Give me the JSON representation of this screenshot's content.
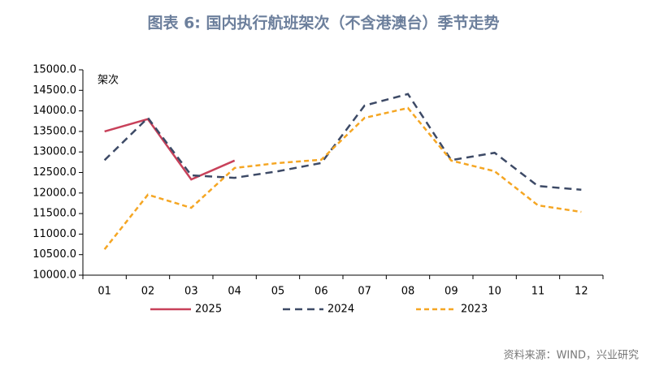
{
  "chart_data": {
    "type": "line",
    "title": "图表 6:  国内执行航班架次（不含港澳台）季节走势",
    "y_label": "架次",
    "source": "资料来源：WIND，兴业研究",
    "categories": [
      "01",
      "02",
      "03",
      "04",
      "05",
      "06",
      "07",
      "08",
      "09",
      "10",
      "11",
      "12"
    ],
    "ylim": [
      10000,
      15000
    ],
    "yticks": [
      {
        "value": 10000,
        "label": "10000.0"
      },
      {
        "value": 10500,
        "label": "10500.0"
      },
      {
        "value": 11000,
        "label": "11000.0"
      },
      {
        "value": 11500,
        "label": "11500.0"
      },
      {
        "value": 12000,
        "label": "12000.0"
      },
      {
        "value": 12500,
        "label": "12500.0"
      },
      {
        "value": 13000,
        "label": "13000.0"
      },
      {
        "value": 13500,
        "label": "13500.0"
      },
      {
        "value": 14000,
        "label": "14000.0"
      },
      {
        "value": 14500,
        "label": "14500.0"
      },
      {
        "value": 15000,
        "label": "15000.0"
      }
    ],
    "grid": false,
    "legend": "bottom",
    "series": [
      {
        "name": "2025",
        "color": "#c8415a",
        "dash": "none",
        "values": [
          13500,
          13800,
          12330,
          12790,
          null,
          null,
          null,
          null,
          null,
          null,
          null,
          null
        ]
      },
      {
        "name": "2024",
        "color": "#3d4a66",
        "dash": "9,6",
        "values": [
          12800,
          13830,
          12430,
          12370,
          12530,
          12730,
          14130,
          14410,
          12800,
          12980,
          12170,
          12080
        ]
      },
      {
        "name": "2023",
        "color": "#f5a623",
        "dash": "6,4",
        "values": [
          10630,
          11960,
          11640,
          12610,
          12730,
          12810,
          13830,
          14070,
          12790,
          12530,
          11700,
          11540
        ]
      }
    ]
  }
}
